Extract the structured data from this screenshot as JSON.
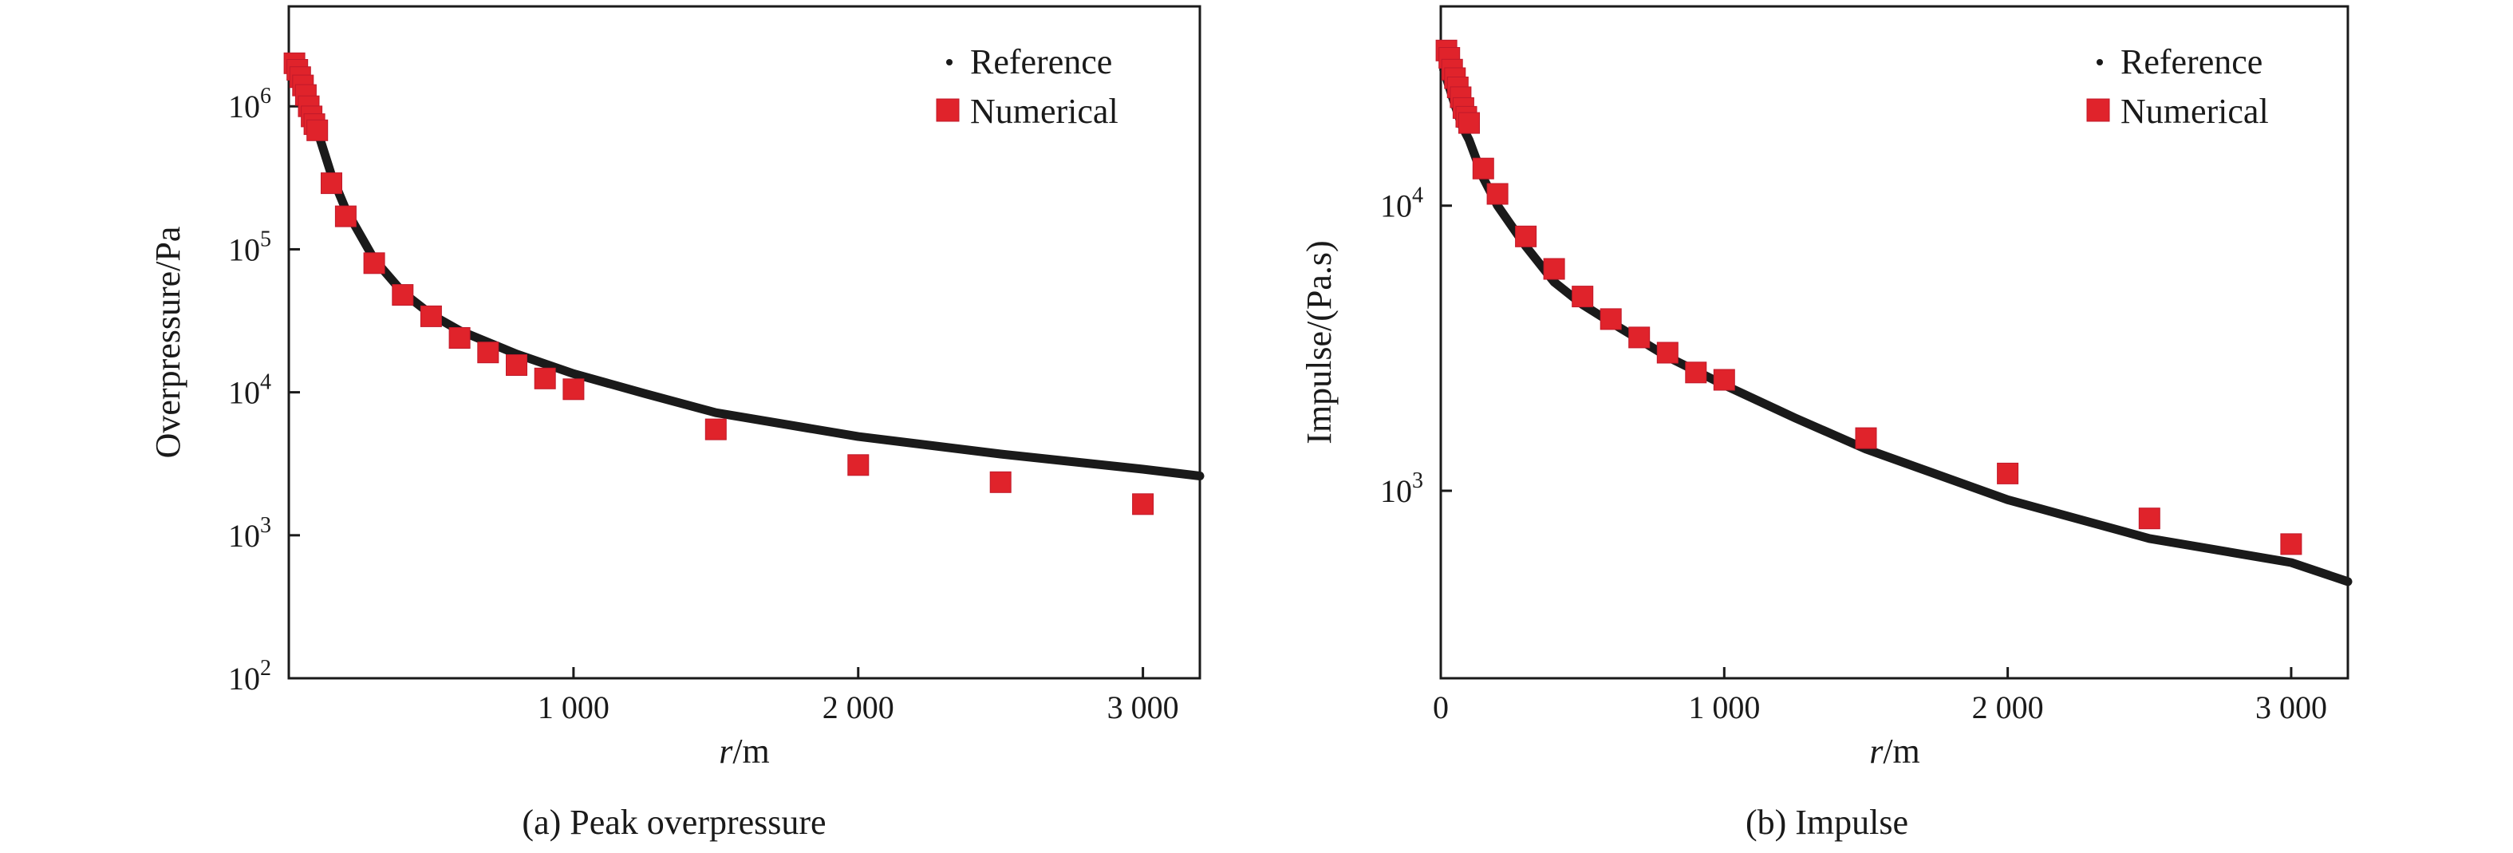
{
  "panels": [
    {
      "caption": "(a) Peak overpressure",
      "xlabel_italic": "r",
      "xlabel_rest": "/m",
      "ylabel": "Overpressure/Pa",
      "legend": {
        "reference": "Reference",
        "numerical": "Numerical"
      }
    },
    {
      "caption": "(b) Impulse",
      "xlabel_italic": "r",
      "xlabel_rest": "/m",
      "ylabel": "Impulse/(Pa.s)",
      "legend": {
        "reference": "Reference",
        "numerical": "Numerical"
      }
    }
  ],
  "colors": {
    "reference": "#1a1a1a",
    "numerical": "#e0232b",
    "axes": "#1a1a1a"
  },
  "chart_data": [
    {
      "type": "scatter",
      "title": "(a) Peak overpressure",
      "xlabel": "r/m",
      "ylabel": "Overpressure/Pa",
      "xscale": "linear",
      "yscale": "log",
      "xlim": [
        0,
        3200
      ],
      "ylim": [
        100,
        5000000
      ],
      "x_ticks": [
        1000,
        2000,
        3000
      ],
      "x_tick_labels": [
        "1 000",
        "2 000",
        "3 000"
      ],
      "y_ticks": [
        100,
        1000,
        10000,
        100000,
        1000000
      ],
      "y_tick_labels": [
        [
          "10",
          "2"
        ],
        [
          "10",
          "3"
        ],
        [
          "10",
          "4"
        ],
        [
          "10",
          "5"
        ],
        [
          "10",
          "6"
        ]
      ],
      "legend_position": "top-right",
      "grid": false,
      "series": [
        {
          "name": "Reference",
          "style": "line",
          "x": [
            20,
            40,
            60,
            80,
            100,
            150,
            200,
            300,
            400,
            500,
            600,
            800,
            1000,
            1250,
            1500,
            2000,
            2500,
            3000,
            3200
          ],
          "y": [
            2000000,
            1500000,
            1100000,
            850000,
            680000,
            330000,
            190000,
            85000,
            50000,
            35000,
            27000,
            18500,
            13500,
            9800,
            7200,
            4900,
            3700,
            2900,
            2600
          ]
        },
        {
          "name": "Numerical",
          "style": "square",
          "x": [
            20,
            30,
            40,
            50,
            60,
            70,
            80,
            90,
            100,
            150,
            200,
            300,
            400,
            500,
            600,
            700,
            800,
            900,
            1000,
            1500,
            2000,
            2500,
            3000
          ],
          "y": [
            2000000,
            1800000,
            1600000,
            1400000,
            1200000,
            1000000,
            850000,
            750000,
            680000,
            290000,
            170000,
            80000,
            48000,
            34000,
            24000,
            19000,
            15500,
            12500,
            10500,
            5500,
            3100,
            2350,
            1650
          ]
        }
      ]
    },
    {
      "type": "scatter",
      "title": "(b) Impulse",
      "xlabel": "r/m",
      "ylabel": "Impulse/(Pa.s)",
      "xscale": "linear",
      "yscale": "log",
      "xlim": [
        0,
        3200
      ],
      "ylim": [
        220,
        50000
      ],
      "x_ticks": [
        0,
        1000,
        2000,
        3000
      ],
      "x_tick_labels": [
        "0",
        "1 000",
        "2 000",
        "3 000"
      ],
      "y_ticks": [
        1000,
        10000
      ],
      "y_tick_labels": [
        [
          "10",
          "3"
        ],
        [
          "10",
          "4"
        ]
      ],
      "legend_position": "top-right",
      "grid": false,
      "series": [
        {
          "name": "Reference",
          "style": "line",
          "x": [
            10,
            30,
            50,
            75,
            100,
            150,
            200,
            300,
            400,
            500,
            600,
            800,
            1000,
            1250,
            1500,
            2000,
            2500,
            3000,
            3200
          ],
          "y": [
            30000,
            26000,
            22500,
            19000,
            17000,
            12500,
            10000,
            7200,
            5400,
            4500,
            3900,
            2950,
            2350,
            1800,
            1400,
            930,
            680,
            560,
            480
          ]
        },
        {
          "name": "Numerical",
          "style": "square",
          "x": [
            20,
            30,
            40,
            50,
            60,
            70,
            80,
            90,
            100,
            150,
            200,
            300,
            400,
            500,
            600,
            700,
            800,
            900,
            1000,
            1500,
            2000,
            2500,
            3000
          ],
          "y": [
            35000,
            33000,
            30000,
            28000,
            26000,
            24000,
            22000,
            20500,
            19500,
            13500,
            11000,
            7800,
            6000,
            4800,
            4000,
            3450,
            3050,
            2600,
            2450,
            1530,
            1150,
            800,
            650
          ]
        }
      ]
    }
  ]
}
